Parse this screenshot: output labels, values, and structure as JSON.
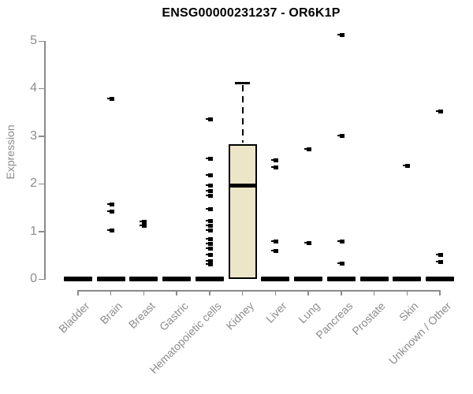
{
  "title": "ENSG00000231237 - OR6K1P",
  "colors": {
    "box_fill": "#ede5c8",
    "box_border": "#000000",
    "axis": "#8a8a8a",
    "axis_text": "#8c8c8c",
    "title_text": "#000000"
  },
  "chart_data": {
    "type": "boxplot",
    "title": "ENSG00000231237 - OR6K1P",
    "xlabel": "",
    "ylabel": "Expression",
    "ylim": [
      0,
      5
    ],
    "yticks": [
      0,
      1,
      2,
      3,
      4,
      5
    ],
    "grid": false,
    "legend": false,
    "categories": [
      "Bladder",
      "Brain",
      "Breast",
      "Gastric",
      "Hematopoietic cells",
      "Kidney",
      "Liver",
      "Lung",
      "Pancreas",
      "Prostate",
      "Skin",
      "Unknown / Other"
    ],
    "boxes": [
      {
        "category": "Bladder",
        "min": 0,
        "q1": 0,
        "median": 0,
        "q3": 0,
        "max": 0,
        "outliers": []
      },
      {
        "category": "Brain",
        "min": 0,
        "q1": 0,
        "median": 0,
        "q3": 0,
        "max": 0,
        "outliers": [
          3.79,
          1.56,
          1.42,
          1.01
        ]
      },
      {
        "category": "Breast",
        "min": 0,
        "q1": 0,
        "median": 0,
        "q3": 0,
        "max": 0,
        "outliers": [
          1.2,
          1.12
        ]
      },
      {
        "category": "Gastric",
        "min": 0,
        "q1": 0,
        "median": 0,
        "q3": 0,
        "max": 0,
        "outliers": []
      },
      {
        "category": "Hematopoietic cells",
        "min": 0,
        "q1": 0,
        "median": 0,
        "q3": 0,
        "max": 0,
        "outliers": [
          3.36,
          2.52,
          2.17,
          1.97,
          1.85,
          1.74,
          1.47,
          1.21,
          1.11,
          1.01,
          0.84,
          0.74,
          0.64,
          0.51,
          0.38,
          0.31
        ]
      },
      {
        "category": "Kidney",
        "min": 0,
        "q1": 0,
        "median": 1.96,
        "q3": 2.83,
        "max": 4.11,
        "outliers": []
      },
      {
        "category": "Liver",
        "min": 0,
        "q1": 0,
        "median": 0,
        "q3": 0,
        "max": 0,
        "outliers": [
          2.5,
          2.35,
          0.79,
          0.58
        ]
      },
      {
        "category": "Lung",
        "min": 0,
        "q1": 0,
        "median": 0,
        "q3": 0,
        "max": 0,
        "outliers": [
          2.73,
          0.76
        ]
      },
      {
        "category": "Pancreas",
        "min": 0,
        "q1": 0,
        "median": 0,
        "q3": 0,
        "max": 0,
        "outliers": [
          5.12,
          3.01,
          0.79,
          0.33
        ]
      },
      {
        "category": "Prostate",
        "min": 0,
        "q1": 0,
        "median": 0,
        "q3": 0,
        "max": 0,
        "outliers": []
      },
      {
        "category": "Skin",
        "min": 0,
        "q1": 0,
        "median": 0,
        "q3": 0,
        "max": 0,
        "outliers": [
          2.38
        ]
      },
      {
        "category": "Unknown / Other",
        "min": 0,
        "q1": 0,
        "median": 0,
        "q3": 0,
        "max": 0,
        "outliers": [
          0.51,
          0.36,
          3.51
        ]
      }
    ]
  }
}
